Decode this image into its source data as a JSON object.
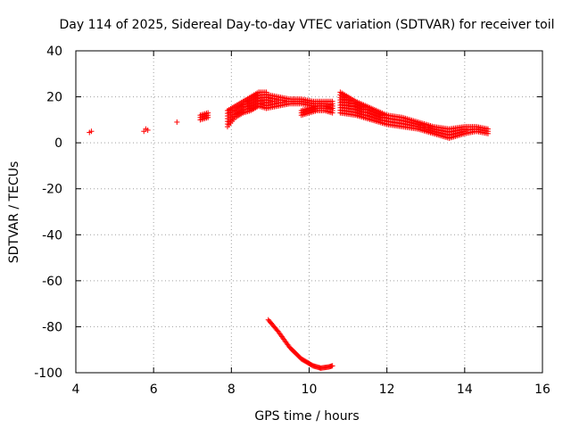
{
  "chart_data": {
    "type": "scatter",
    "title": "Day 114 of 2025, Sidereal Day-to-day VTEC variation (SDTVAR) for receiver toil",
    "xlabel": "GPS time / hours",
    "ylabel": "SDTVAR / TECUs",
    "xlim": [
      4,
      16
    ],
    "ylim": [
      -100,
      40
    ],
    "xticks": [
      4,
      6,
      8,
      10,
      12,
      14,
      16
    ],
    "yticks": [
      -100,
      -80,
      -60,
      -40,
      -20,
      0,
      20,
      40
    ],
    "grid": true,
    "marker": "plus",
    "color": "#ff0000",
    "series": [
      {
        "name": "isolated-points",
        "points": [
          [
            4.35,
            4.5
          ],
          [
            4.4,
            5
          ],
          [
            5.75,
            5
          ],
          [
            5.8,
            6
          ],
          [
            5.85,
            5.5
          ],
          [
            6.6,
            9
          ]
        ]
      },
      {
        "name": "band-7.2-7.4",
        "x": [
          7.2,
          7.4
        ],
        "lower": [
          10,
          11
        ],
        "upper": [
          12,
          13
        ]
      },
      {
        "name": "band-7.9-8.9",
        "x": [
          7.9,
          8.1,
          8.3,
          8.5,
          8.7,
          8.9
        ],
        "lower": [
          7,
          11,
          13,
          14,
          16,
          15
        ],
        "upper": [
          14,
          16,
          18,
          20,
          22,
          22
        ]
      },
      {
        "name": "band-8.9-10.6",
        "x": [
          8.9,
          9.2,
          9.5,
          9.8,
          10.1,
          10.4,
          10.6
        ],
        "lower": [
          15,
          16,
          17,
          17,
          16,
          16,
          15
        ],
        "upper": [
          21,
          20,
          19,
          19,
          18,
          18,
          18
        ]
      },
      {
        "name": "band-9.8-10.6",
        "x": [
          9.8,
          10.0,
          10.2,
          10.4,
          10.6
        ],
        "lower": [
          12,
          13,
          14,
          14,
          13
        ],
        "upper": [
          14,
          15,
          16,
          16,
          16
        ]
      },
      {
        "name": "band-10.8-14.6",
        "x": [
          10.8,
          11.2,
          11.6,
          12.0,
          12.4,
          12.8,
          13.2,
          13.6,
          14.0,
          14.3,
          14.6
        ],
        "lower": [
          13,
          12,
          10,
          8,
          7,
          6,
          4,
          2,
          4,
          5,
          4
        ],
        "upper": [
          22,
          18,
          15,
          12,
          11,
          9,
          7,
          6,
          7,
          7,
          6
        ]
      },
      {
        "name": "dip-curve",
        "x": [
          8.95,
          9.2,
          9.5,
          9.8,
          10.1,
          10.3,
          10.5,
          10.6
        ],
        "y": [
          -77,
          -82,
          -89,
          -94,
          -97,
          -98,
          -97.5,
          -97
        ]
      }
    ]
  }
}
